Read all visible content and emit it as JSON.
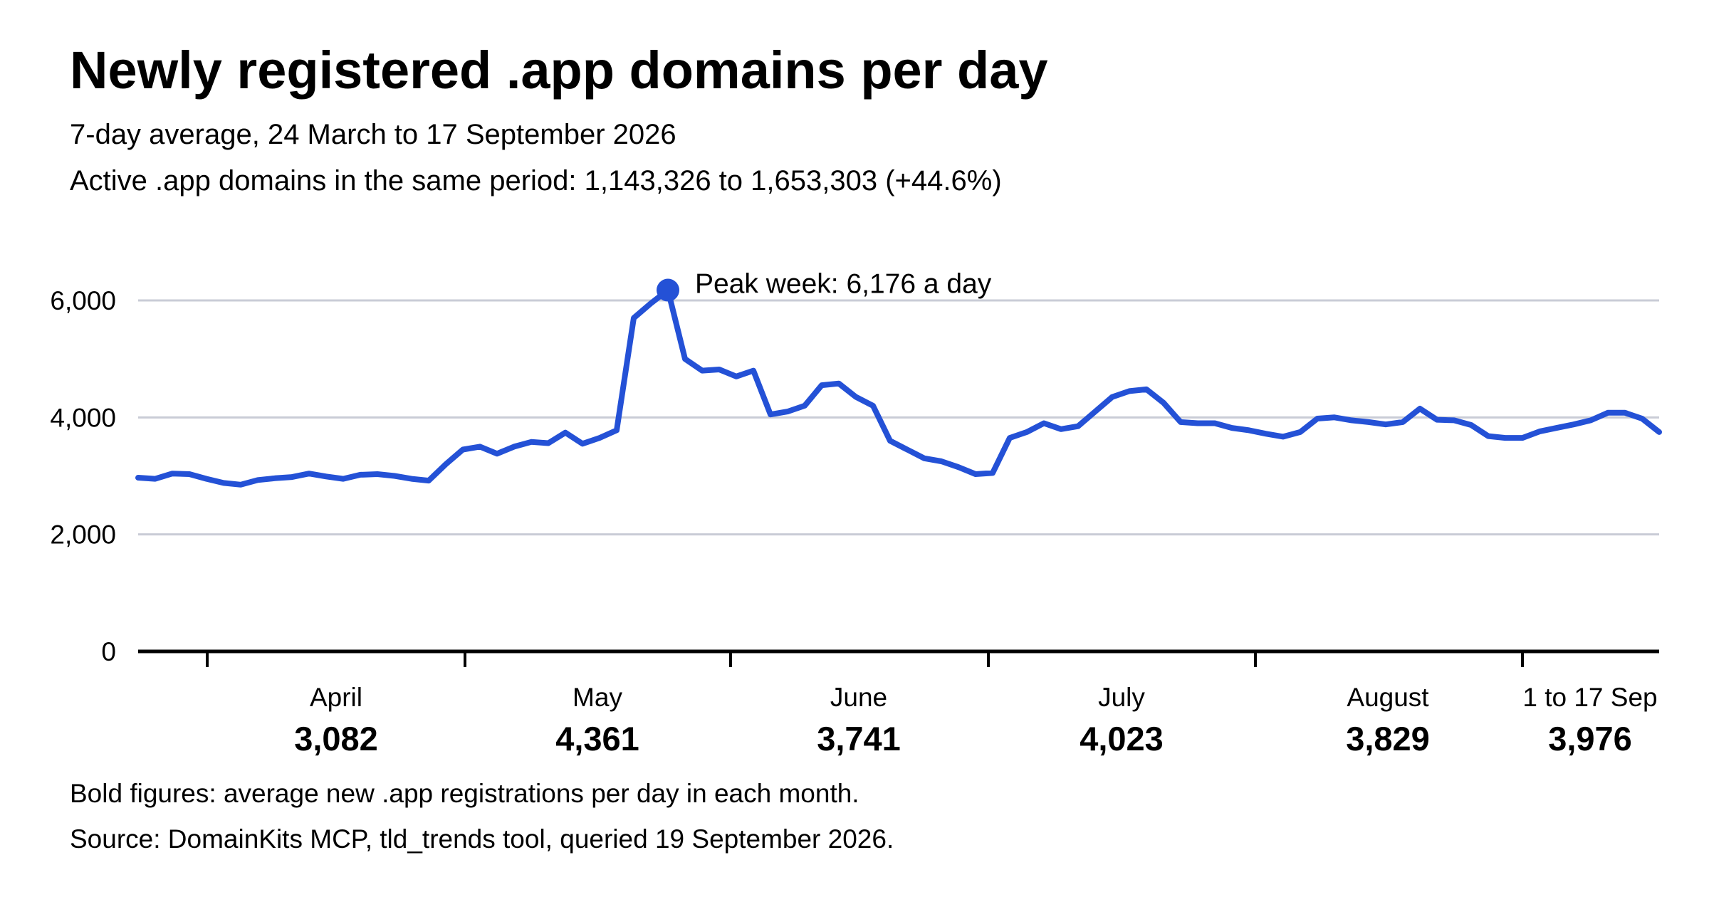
{
  "chart_data": {
    "type": "line",
    "title": "Newly registered .app domains per day",
    "subtitle": "7-day average, 24 March to 17 September 2026",
    "subtitle_2": "Active .app domains in the same period: 1,143,326 to 1,653,303 (+44.6%)",
    "color": "#2451d6",
    "values": [
      2970,
      2950,
      3040,
      3030,
      2950,
      2880,
      2850,
      2930,
      2960,
      2980,
      3040,
      2990,
      2950,
      3020,
      3030,
      3000,
      2950,
      2920,
      3200,
      3450,
      3500,
      3380,
      3500,
      3580,
      3560,
      3740,
      3550,
      3650,
      3780,
      5700,
      5950,
      6176,
      5000,
      4800,
      4820,
      4700,
      4800,
      4050,
      4100,
      4200,
      4550,
      4580,
      4350,
      4200,
      3600,
      3450,
      3300,
      3250,
      3150,
      3030,
      3050,
      3650,
      3750,
      3900,
      3800,
      3850,
      4100,
      4350,
      4450,
      4480,
      4250,
      3920,
      3900,
      3900,
      3820,
      3780,
      3720,
      3670,
      3750,
      3980,
      4000,
      3950,
      3920,
      3880,
      3920,
      4150,
      3960,
      3950,
      3870,
      3680,
      3650,
      3650,
      3760,
      3820,
      3880,
      3950,
      4080,
      4080,
      3980,
      3750
    ],
    "annotation": "Peak week: 6,176 a day",
    "ylim": [
      0,
      6000
    ],
    "yticks": [
      0,
      {
        "value": 2000,
        "label": "2,000"
      },
      {
        "value": 4000,
        "label": "4,000"
      },
      {
        "value": 6000,
        "label": "6,000"
      }
    ],
    "grid": true,
    "months": {
      "categories": [
        "April",
        "May",
        "June",
        "July",
        "August",
        "1 to 17 Sep"
      ],
      "values": [
        3082,
        4361,
        3741,
        4023,
        3829,
        3976
      ],
      "value_labels": [
        "3,082",
        "4,361",
        "3,741",
        "4,023",
        "3,829",
        "3,976"
      ]
    },
    "notes": [
      "Bold figures: average new .app registrations per day in each month.",
      "Source: DomainKits MCP, tld_trends tool, queried 19 September 2026."
    ]
  }
}
